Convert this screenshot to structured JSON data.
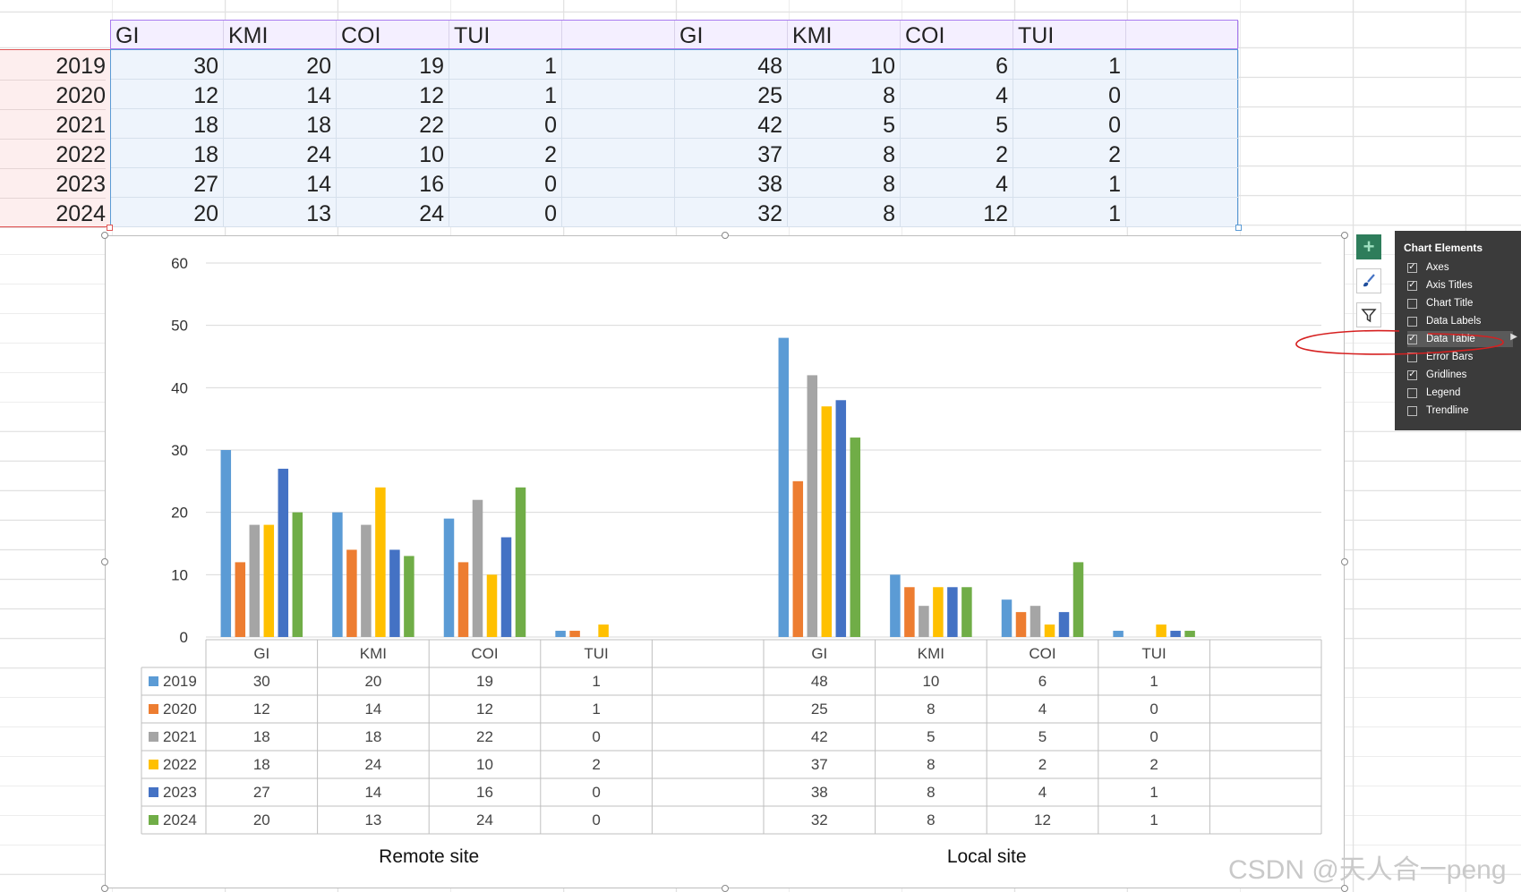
{
  "sheet": {
    "headers": [
      "GI",
      "KMI",
      "COI",
      "TUI",
      "",
      "GI",
      "KMI",
      "COI",
      "TUI",
      ""
    ],
    "years": [
      "2019",
      "2020",
      "2021",
      "2022",
      "2023",
      "2024"
    ],
    "rows": [
      [
        "30",
        "20",
        "19",
        "1",
        "",
        "48",
        "10",
        "6",
        "1",
        ""
      ],
      [
        "12",
        "14",
        "12",
        "1",
        "",
        "25",
        "8",
        "4",
        "0",
        ""
      ],
      [
        "18",
        "18",
        "22",
        "0",
        "",
        "42",
        "5",
        "5",
        "0",
        ""
      ],
      [
        "18",
        "24",
        "10",
        "2",
        "",
        "37",
        "8",
        "2",
        "2",
        ""
      ],
      [
        "27",
        "14",
        "16",
        "0",
        "",
        "38",
        "8",
        "4",
        "1",
        ""
      ],
      [
        "20",
        "13",
        "24",
        "0",
        "",
        "32",
        "8",
        "12",
        "1",
        ""
      ]
    ]
  },
  "chart_data": {
    "type": "bar",
    "categories": [
      "GI",
      "KMI",
      "COI",
      "TUI",
      "",
      "GI",
      "KMI",
      "COI",
      "TUI",
      ""
    ],
    "series": [
      {
        "name": "2019",
        "color": "#5b9bd5",
        "values": [
          30,
          20,
          19,
          1,
          null,
          48,
          10,
          6,
          1,
          null
        ]
      },
      {
        "name": "2020",
        "color": "#ed7d31",
        "values": [
          12,
          14,
          12,
          1,
          null,
          25,
          8,
          4,
          0,
          null
        ]
      },
      {
        "name": "2021",
        "color": "#a5a5a5",
        "values": [
          18,
          18,
          22,
          0,
          null,
          42,
          5,
          5,
          0,
          null
        ]
      },
      {
        "name": "2022",
        "color": "#ffc000",
        "values": [
          18,
          24,
          10,
          2,
          null,
          37,
          8,
          2,
          2,
          null
        ]
      },
      {
        "name": "2023",
        "color": "#4472c4",
        "values": [
          27,
          14,
          16,
          0,
          null,
          38,
          8,
          4,
          1,
          null
        ]
      },
      {
        "name": "2024",
        "color": "#70ad47",
        "values": [
          20,
          13,
          24,
          0,
          null,
          32,
          8,
          12,
          1,
          null
        ]
      }
    ],
    "ylim": [
      0,
      60
    ],
    "yticks": [
      "0",
      "10",
      "20",
      "30",
      "40",
      "50",
      "60"
    ],
    "gridlines": true,
    "data_table": true,
    "group_labels": [
      "Remote site",
      "Local site"
    ]
  },
  "chart_elements": {
    "title": "Chart Elements",
    "items": [
      {
        "label": "Axes",
        "checked": true
      },
      {
        "label": "Axis Titles",
        "checked": true
      },
      {
        "label": "Chart Title",
        "checked": false
      },
      {
        "label": "Data Labels",
        "checked": false
      },
      {
        "label": "Data Table",
        "checked": true
      },
      {
        "label": "Error Bars",
        "checked": false
      },
      {
        "label": "Gridlines",
        "checked": true
      },
      {
        "label": "Legend",
        "checked": false
      },
      {
        "label": "Trendline",
        "checked": false
      }
    ]
  },
  "watermark": "CSDN @天人合一peng"
}
